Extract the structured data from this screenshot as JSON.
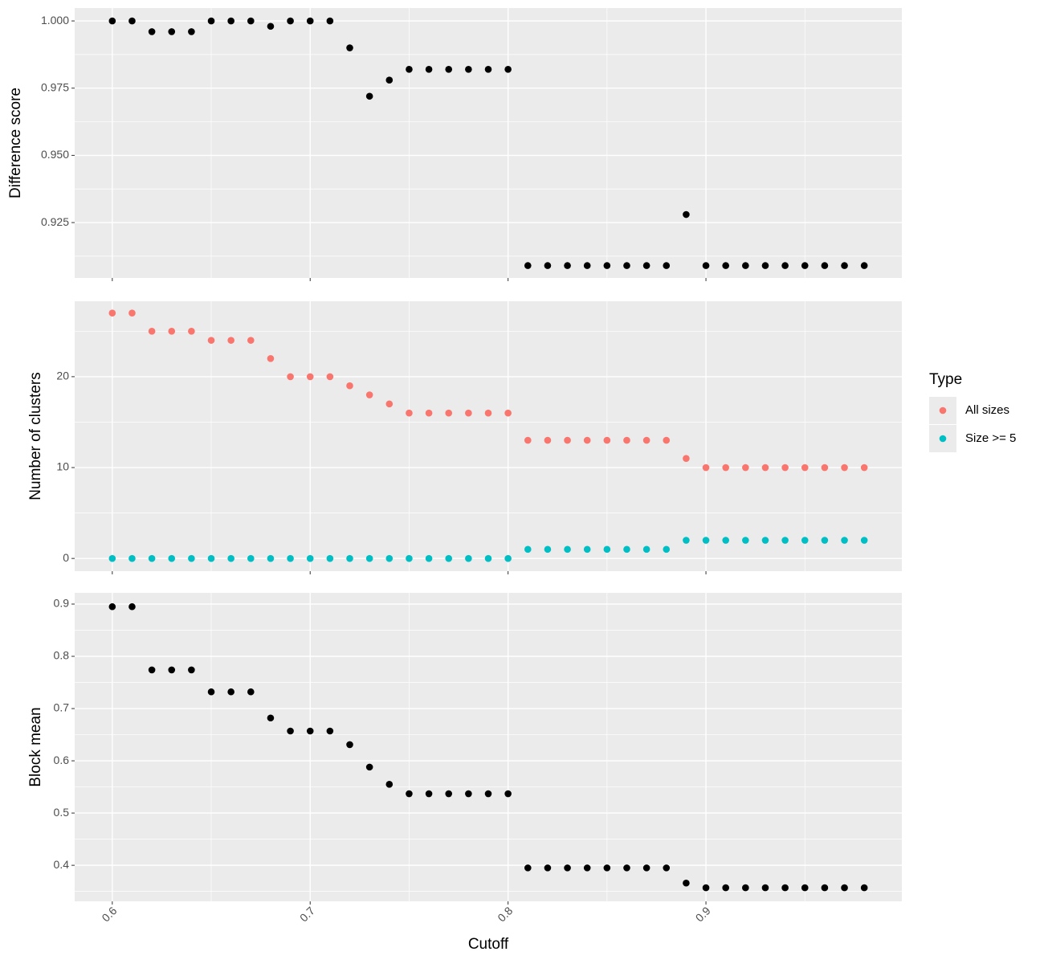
{
  "chart_data": [
    {
      "type": "scatter",
      "ylabel": "Difference score",
      "x": [
        0.6,
        0.61,
        0.62,
        0.63,
        0.64,
        0.65,
        0.66,
        0.67,
        0.68,
        0.69,
        0.7,
        0.71,
        0.72,
        0.73,
        0.74,
        0.75,
        0.76,
        0.77,
        0.78,
        0.79,
        0.8,
        0.81,
        0.82,
        0.83,
        0.84,
        0.85,
        0.86,
        0.87,
        0.88,
        0.89,
        0.9,
        0.91,
        0.92,
        0.93,
        0.94,
        0.95,
        0.96,
        0.97,
        0.98
      ],
      "series": [
        {
          "color": "#000000",
          "values": [
            1.0,
            1.0,
            0.996,
            0.996,
            0.996,
            1.0,
            1.0,
            1.0,
            0.998,
            1.0,
            1.0,
            1.0,
            0.99,
            0.972,
            0.978,
            0.982,
            0.982,
            0.982,
            0.982,
            0.982,
            0.982,
            0.909,
            0.909,
            0.909,
            0.909,
            0.909,
            0.909,
            0.909,
            0.909,
            0.928,
            0.909,
            0.909,
            0.909,
            0.909,
            0.909,
            0.909,
            0.909,
            0.909,
            0.909
          ]
        }
      ],
      "xlim": [
        0.581,
        0.999
      ],
      "ylim": [
        0.9044,
        1.0048
      ],
      "yticks": [
        {
          "value": 0.925,
          "label": "0.925"
        },
        {
          "value": 0.95,
          "label": "0.950"
        },
        {
          "value": 0.975,
          "label": "0.975"
        },
        {
          "value": 1.0,
          "label": "1.000"
        }
      ],
      "grid": true
    },
    {
      "type": "scatter",
      "ylabel": "Number of clusters",
      "legend_title": "Type",
      "x": [
        0.6,
        0.61,
        0.62,
        0.63,
        0.64,
        0.65,
        0.66,
        0.67,
        0.68,
        0.69,
        0.7,
        0.71,
        0.72,
        0.73,
        0.74,
        0.75,
        0.76,
        0.77,
        0.78,
        0.79,
        0.8,
        0.81,
        0.82,
        0.83,
        0.84,
        0.85,
        0.86,
        0.87,
        0.88,
        0.89,
        0.9,
        0.91,
        0.92,
        0.93,
        0.94,
        0.95,
        0.96,
        0.97,
        0.98
      ],
      "series": [
        {
          "name": "All sizes",
          "color": "#F8766D",
          "values": [
            27,
            27,
            25,
            25,
            25,
            24,
            24,
            24,
            22,
            20,
            20,
            20,
            19,
            18,
            17,
            16,
            16,
            16,
            16,
            16,
            16,
            13,
            13,
            13,
            13,
            13,
            13,
            13,
            13,
            11,
            10,
            10,
            10,
            10,
            10,
            10,
            10,
            10,
            10
          ]
        },
        {
          "name": "Size >= 5",
          "color": "#00BFC4",
          "values": [
            0,
            0,
            0,
            0,
            0,
            0,
            0,
            0,
            0,
            0,
            0,
            0,
            0,
            0,
            0,
            0,
            0,
            0,
            0,
            0,
            0,
            1,
            1,
            1,
            1,
            1,
            1,
            1,
            1,
            2,
            2,
            2,
            2,
            2,
            2,
            2,
            2,
            2,
            2
          ]
        }
      ],
      "xlim": [
        0.581,
        0.999
      ],
      "ylim": [
        -1.4,
        28.3
      ],
      "yticks": [
        0,
        10,
        20
      ],
      "grid": true
    },
    {
      "type": "scatter",
      "ylabel": "Block mean",
      "xlabel": "Cutoff",
      "x": [
        0.6,
        0.61,
        0.62,
        0.63,
        0.64,
        0.65,
        0.66,
        0.67,
        0.68,
        0.69,
        0.7,
        0.71,
        0.72,
        0.73,
        0.74,
        0.75,
        0.76,
        0.77,
        0.78,
        0.79,
        0.8,
        0.81,
        0.82,
        0.83,
        0.84,
        0.85,
        0.86,
        0.87,
        0.88,
        0.89,
        0.9,
        0.91,
        0.92,
        0.93,
        0.94,
        0.95,
        0.96,
        0.97,
        0.98
      ],
      "series": [
        {
          "color": "#000000",
          "values": [
            0.895,
            0.895,
            0.774,
            0.774,
            0.774,
            0.732,
            0.732,
            0.732,
            0.682,
            0.657,
            0.657,
            0.657,
            0.631,
            0.588,
            0.555,
            0.537,
            0.537,
            0.537,
            0.537,
            0.537,
            0.537,
            0.395,
            0.395,
            0.395,
            0.395,
            0.395,
            0.395,
            0.395,
            0.395,
            0.366,
            0.357,
            0.357,
            0.357,
            0.357,
            0.357,
            0.357,
            0.357,
            0.357,
            0.357
          ]
        }
      ],
      "xlim": [
        0.581,
        0.999
      ],
      "ylim": [
        0.331,
        0.9215
      ],
      "yticks": [
        0.4,
        0.5,
        0.6,
        0.7,
        0.8,
        0.9
      ],
      "xticks": [
        0.6,
        0.7,
        0.8,
        0.9
      ],
      "grid": true
    }
  ]
}
